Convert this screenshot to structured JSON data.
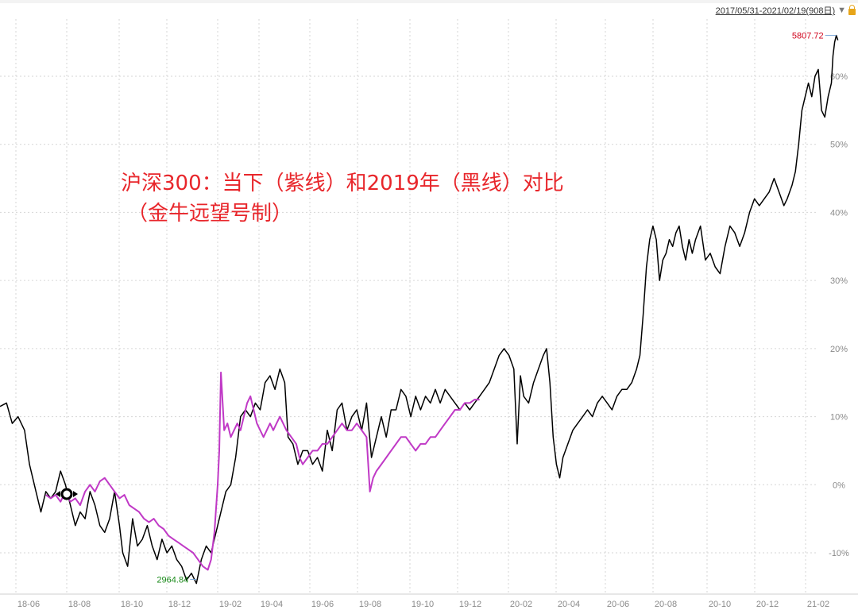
{
  "header": {
    "date_range": "2017/05/31-2021/02/19(908日)",
    "dropdown_icon": "triangle-down-icon",
    "lock_icon": "lock-icon"
  },
  "annotation": {
    "line1": "沪深300：当下（紫线）和2019年（黑线）对比",
    "line2": "（金牛远望号制）"
  },
  "colors": {
    "black_series": "#000000",
    "purple_series": "#c039c6",
    "annotation": "#e8262b",
    "max_label": "#d0021b",
    "min_label": "#1a8a1a",
    "grid": "#d6d6d6",
    "axis_text": "#8a8a8a"
  },
  "chart_data": {
    "type": "line",
    "title": "",
    "xlabel": "",
    "ylabel": "",
    "x_ticks": [
      "18-06",
      "18-08",
      "18-10",
      "18-12",
      "19-02",
      "19-04",
      "19-06",
      "19-08",
      "19-10",
      "19-12",
      "20-02",
      "20-04",
      "20-06",
      "20-08",
      "20-10",
      "20-12",
      "21-02"
    ],
    "y_ticks": [
      "60%",
      "50%",
      "40%",
      "30%",
      "20%",
      "10%",
      "0%",
      "-10%"
    ],
    "y_tick_values": [
      60,
      50,
      40,
      30,
      20,
      10,
      0,
      -10
    ],
    "ylim": [
      -15,
      67
    ],
    "xlim": [
      0,
      1000
    ],
    "grid": true,
    "max_label": "5807.72",
    "min_label": "2964.84",
    "series": [
      {
        "color": "#000000",
        "points": [
          [
            0,
            11.5
          ],
          [
            8,
            12
          ],
          [
            15,
            9
          ],
          [
            22,
            10
          ],
          [
            30,
            8
          ],
          [
            36,
            3
          ],
          [
            44,
            -1
          ],
          [
            50,
            -4
          ],
          [
            56,
            -1
          ],
          [
            62,
            -2
          ],
          [
            68,
            -1
          ],
          [
            74,
            2
          ],
          [
            80,
            0
          ],
          [
            86,
            -3
          ],
          [
            92,
            -6
          ],
          [
            98,
            -4
          ],
          [
            104,
            -5
          ],
          [
            110,
            -1
          ],
          [
            116,
            -3
          ],
          [
            122,
            -6
          ],
          [
            128,
            -7
          ],
          [
            134,
            -5
          ],
          [
            140,
            -1
          ],
          [
            146,
            -6
          ],
          [
            150,
            -10
          ],
          [
            156,
            -12
          ],
          [
            162,
            -5
          ],
          [
            168,
            -9
          ],
          [
            174,
            -8
          ],
          [
            180,
            -6
          ],
          [
            186,
            -9
          ],
          [
            192,
            -11
          ],
          [
            198,
            -8
          ],
          [
            204,
            -10
          ],
          [
            210,
            -9
          ],
          [
            216,
            -11
          ],
          [
            222,
            -12
          ],
          [
            228,
            -14
          ],
          [
            234,
            -13
          ],
          [
            240,
            -14.5
          ],
          [
            246,
            -11
          ],
          [
            252,
            -9
          ],
          [
            258,
            -10
          ],
          [
            264,
            -7
          ],
          [
            270,
            -4
          ],
          [
            276,
            -1
          ],
          [
            282,
            0
          ],
          [
            288,
            4
          ],
          [
            294,
            10
          ],
          [
            300,
            11
          ],
          [
            306,
            10
          ],
          [
            312,
            12
          ],
          [
            318,
            11
          ],
          [
            324,
            15
          ],
          [
            330,
            16
          ],
          [
            336,
            14
          ],
          [
            342,
            17
          ],
          [
            348,
            15
          ],
          [
            352,
            7
          ],
          [
            358,
            6
          ],
          [
            364,
            3
          ],
          [
            370,
            5
          ],
          [
            376,
            5
          ],
          [
            382,
            3
          ],
          [
            388,
            4
          ],
          [
            394,
            2
          ],
          [
            400,
            8
          ],
          [
            406,
            5
          ],
          [
            412,
            11
          ],
          [
            418,
            12
          ],
          [
            424,
            8
          ],
          [
            430,
            10
          ],
          [
            436,
            11
          ],
          [
            442,
            8
          ],
          [
            448,
            12
          ],
          [
            454,
            4
          ],
          [
            460,
            7
          ],
          [
            466,
            10
          ],
          [
            472,
            7
          ],
          [
            478,
            11
          ],
          [
            484,
            11
          ],
          [
            490,
            14
          ],
          [
            496,
            13
          ],
          [
            502,
            10
          ],
          [
            508,
            13
          ],
          [
            514,
            11
          ],
          [
            520,
            13
          ],
          [
            526,
            12
          ],
          [
            532,
            14
          ],
          [
            538,
            12
          ],
          [
            544,
            14
          ],
          [
            550,
            13
          ],
          [
            556,
            12
          ],
          [
            562,
            11
          ],
          [
            568,
            12
          ],
          [
            574,
            11
          ],
          [
            580,
            12
          ],
          [
            586,
            13
          ],
          [
            592,
            14
          ],
          [
            598,
            15
          ],
          [
            604,
            17
          ],
          [
            610,
            19
          ],
          [
            616,
            20
          ],
          [
            622,
            19
          ],
          [
            628,
            17
          ],
          [
            632,
            6
          ],
          [
            636,
            16
          ],
          [
            640,
            13
          ],
          [
            646,
            12
          ],
          [
            652,
            15
          ],
          [
            658,
            17
          ],
          [
            664,
            19
          ],
          [
            668,
            20
          ],
          [
            672,
            15
          ],
          [
            676,
            7
          ],
          [
            680,
            3
          ],
          [
            684,
            1
          ],
          [
            688,
            4
          ],
          [
            694,
            6
          ],
          [
            700,
            8
          ],
          [
            706,
            9
          ],
          [
            712,
            10
          ],
          [
            718,
            11
          ],
          [
            724,
            10
          ],
          [
            730,
            12
          ],
          [
            736,
            13
          ],
          [
            742,
            12
          ],
          [
            748,
            11
          ],
          [
            754,
            13
          ],
          [
            760,
            14
          ],
          [
            766,
            14
          ],
          [
            772,
            15
          ],
          [
            778,
            17
          ],
          [
            782,
            19
          ],
          [
            786,
            25
          ],
          [
            790,
            32
          ],
          [
            794,
            36
          ],
          [
            798,
            38
          ],
          [
            802,
            36
          ],
          [
            806,
            30
          ],
          [
            810,
            33
          ],
          [
            814,
            34
          ],
          [
            818,
            36
          ],
          [
            822,
            35
          ],
          [
            826,
            37
          ],
          [
            830,
            38
          ],
          [
            834,
            35
          ],
          [
            838,
            33
          ],
          [
            842,
            36
          ],
          [
            846,
            34
          ],
          [
            850,
            36
          ],
          [
            856,
            38
          ],
          [
            862,
            33
          ],
          [
            868,
            34
          ],
          [
            874,
            32
          ],
          [
            880,
            31
          ],
          [
            886,
            35
          ],
          [
            892,
            38
          ],
          [
            898,
            37
          ],
          [
            904,
            35
          ],
          [
            910,
            37
          ],
          [
            916,
            40
          ],
          [
            922,
            42
          ],
          [
            928,
            41
          ],
          [
            934,
            42
          ],
          [
            940,
            43
          ],
          [
            946,
            45
          ],
          [
            952,
            43
          ],
          [
            958,
            41
          ],
          [
            962,
            42
          ],
          [
            968,
            44
          ],
          [
            972,
            46
          ],
          [
            976,
            50
          ],
          [
            980,
            55
          ],
          [
            984,
            57
          ],
          [
            988,
            59
          ],
          [
            992,
            57
          ],
          [
            996,
            60
          ],
          [
            1000,
            61
          ],
          [
            1002,
            58
          ],
          [
            1004,
            55
          ],
          [
            1008,
            54
          ],
          [
            1012,
            57
          ],
          [
            1016,
            59
          ],
          [
            1018,
            63
          ],
          [
            1020,
            65
          ],
          [
            1022,
            66
          ],
          [
            1024,
            65.3
          ]
        ]
      },
      {
        "color": "#c039c6",
        "points": [
          [
            56,
            -1.5
          ],
          [
            62,
            -2
          ],
          [
            68,
            -1.5
          ],
          [
            74,
            -2.5
          ],
          [
            80,
            -1
          ],
          [
            86,
            -2.5
          ],
          [
            92,
            -2
          ],
          [
            98,
            -3
          ],
          [
            104,
            -1
          ],
          [
            110,
            0
          ],
          [
            116,
            -1
          ],
          [
            122,
            0.5
          ],
          [
            128,
            1
          ],
          [
            134,
            0
          ],
          [
            140,
            -1
          ],
          [
            146,
            -2
          ],
          [
            152,
            -1.5
          ],
          [
            158,
            -3
          ],
          [
            164,
            -3.5
          ],
          [
            170,
            -4
          ],
          [
            176,
            -5
          ],
          [
            182,
            -5.5
          ],
          [
            188,
            -5
          ],
          [
            194,
            -6
          ],
          [
            200,
            -6.5
          ],
          [
            206,
            -7.5
          ],
          [
            212,
            -8
          ],
          [
            218,
            -8.5
          ],
          [
            224,
            -9
          ],
          [
            230,
            -9.5
          ],
          [
            236,
            -10
          ],
          [
            242,
            -11
          ],
          [
            248,
            -12
          ],
          [
            254,
            -12.5
          ],
          [
            258,
            -11
          ],
          [
            262,
            -7
          ],
          [
            266,
            0
          ],
          [
            268,
            5
          ],
          [
            270,
            16.5
          ],
          [
            274,
            8
          ],
          [
            278,
            9
          ],
          [
            282,
            7
          ],
          [
            286,
            8
          ],
          [
            290,
            9
          ],
          [
            294,
            8
          ],
          [
            298,
            10
          ],
          [
            302,
            12
          ],
          [
            306,
            13
          ],
          [
            310,
            11
          ],
          [
            314,
            9
          ],
          [
            318,
            8
          ],
          [
            322,
            7
          ],
          [
            326,
            8
          ],
          [
            330,
            9
          ],
          [
            334,
            8
          ],
          [
            338,
            9
          ],
          [
            342,
            10
          ],
          [
            346,
            9
          ],
          [
            350,
            8
          ],
          [
            356,
            7
          ],
          [
            362,
            6
          ],
          [
            366,
            4
          ],
          [
            370,
            3
          ],
          [
            376,
            4
          ],
          [
            382,
            5
          ],
          [
            388,
            5
          ],
          [
            394,
            6
          ],
          [
            400,
            6
          ],
          [
            406,
            7
          ],
          [
            412,
            8
          ],
          [
            418,
            9
          ],
          [
            424,
            8
          ],
          [
            430,
            8
          ],
          [
            436,
            9
          ],
          [
            442,
            8
          ],
          [
            448,
            7
          ],
          [
            452,
            -1
          ],
          [
            456,
            1
          ],
          [
            460,
            2
          ],
          [
            466,
            3
          ],
          [
            472,
            4
          ],
          [
            478,
            5
          ],
          [
            484,
            6
          ],
          [
            490,
            7
          ],
          [
            496,
            7
          ],
          [
            502,
            6
          ],
          [
            508,
            5
          ],
          [
            514,
            6
          ],
          [
            520,
            6
          ],
          [
            526,
            7
          ],
          [
            532,
            7
          ],
          [
            538,
            8
          ],
          [
            544,
            9
          ],
          [
            550,
            10
          ],
          [
            556,
            11
          ],
          [
            562,
            11
          ],
          [
            568,
            12
          ],
          [
            574,
            12
          ],
          [
            580,
            12.5
          ],
          [
            586,
            12.5
          ]
        ]
      }
    ]
  }
}
